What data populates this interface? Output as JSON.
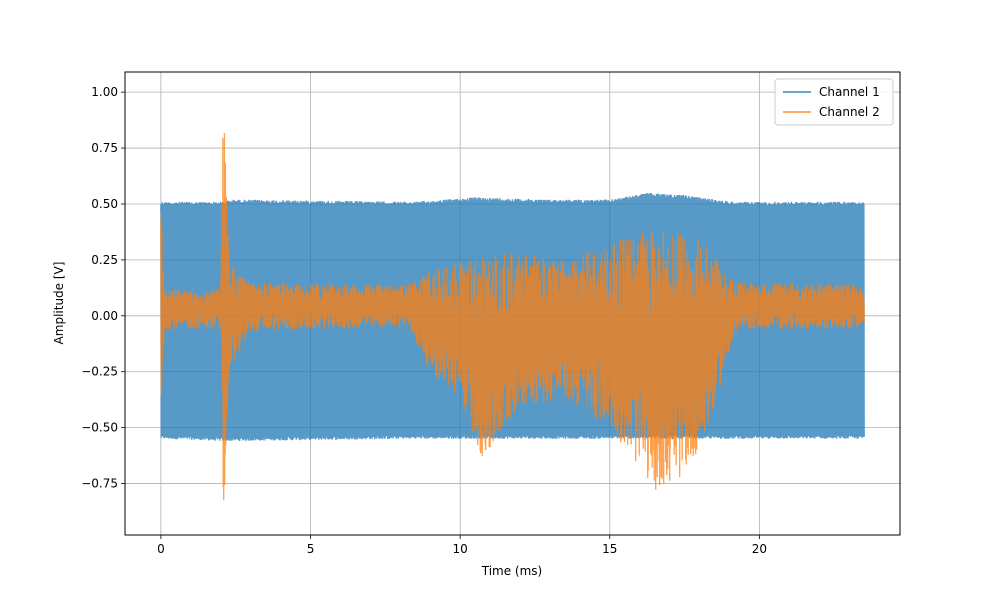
{
  "chart_data": {
    "type": "line",
    "title": "",
    "xlabel": "Time (ms)",
    "ylabel": "Amplitude [V]",
    "xlim": [
      -1.2,
      24.7
    ],
    "ylim": [
      -0.98,
      1.09
    ],
    "xticks": [
      0,
      5,
      10,
      15,
      20
    ],
    "xtick_labels": [
      "0",
      "5",
      "10",
      "15",
      "20"
    ],
    "yticks": [
      -0.75,
      -0.5,
      -0.25,
      0.0,
      0.25,
      0.5,
      0.75,
      1.0
    ],
    "ytick_labels": [
      "−0.75",
      "−0.50",
      "−0.25",
      "0.00",
      "0.25",
      "0.50",
      "0.75",
      "1.00"
    ],
    "grid": true,
    "legend_position": "upper right",
    "series": [
      {
        "name": "Channel 1",
        "color": "#1f77b4",
        "opacity": 0.75,
        "envelope_points": [
          {
            "x": 0.0,
            "min": -0.55,
            "max": 0.51
          },
          {
            "x": 2.0,
            "min": -0.56,
            "max": 0.51
          },
          {
            "x": 2.4,
            "min": -0.56,
            "max": 0.52
          },
          {
            "x": 8.5,
            "min": -0.55,
            "max": 0.51
          },
          {
            "x": 9.5,
            "min": -0.55,
            "max": 0.52
          },
          {
            "x": 10.5,
            "min": -0.55,
            "max": 0.53
          },
          {
            "x": 13.0,
            "min": -0.55,
            "max": 0.52
          },
          {
            "x": 15.0,
            "min": -0.55,
            "max": 0.52
          },
          {
            "x": 16.3,
            "min": -0.55,
            "max": 0.55
          },
          {
            "x": 17.5,
            "min": -0.55,
            "max": 0.54
          },
          {
            "x": 18.5,
            "min": -0.55,
            "max": 0.52
          },
          {
            "x": 19.2,
            "min": -0.55,
            "max": 0.51
          },
          {
            "x": 23.5,
            "min": -0.55,
            "max": 0.51
          }
        ]
      },
      {
        "name": "Channel 2",
        "color": "#ff7f0e",
        "opacity": 0.75,
        "envelope_points": [
          {
            "x": 0.0,
            "min": -0.6,
            "max": 0.63
          },
          {
            "x": 0.1,
            "min": -0.06,
            "max": 0.12
          },
          {
            "x": 2.0,
            "min": -0.06,
            "max": 0.12
          },
          {
            "x": 2.08,
            "min": -0.89,
            "max": 1.0
          },
          {
            "x": 2.3,
            "min": -0.25,
            "max": 0.25
          },
          {
            "x": 3.0,
            "min": -0.07,
            "max": 0.15
          },
          {
            "x": 8.2,
            "min": -0.05,
            "max": 0.14
          },
          {
            "x": 9.0,
            "min": -0.25,
            "max": 0.2
          },
          {
            "x": 10.0,
            "min": -0.38,
            "max": 0.24
          },
          {
            "x": 10.8,
            "min": -0.67,
            "max": 0.27
          },
          {
            "x": 12.0,
            "min": -0.4,
            "max": 0.28
          },
          {
            "x": 13.5,
            "min": -0.38,
            "max": 0.25
          },
          {
            "x": 15.0,
            "min": -0.5,
            "max": 0.33
          },
          {
            "x": 16.5,
            "min": -0.78,
            "max": 0.4
          },
          {
            "x": 17.2,
            "min": -0.76,
            "max": 0.38
          },
          {
            "x": 18.2,
            "min": -0.55,
            "max": 0.34
          },
          {
            "x": 18.9,
            "min": -0.2,
            "max": 0.18
          },
          {
            "x": 19.3,
            "min": -0.06,
            "max": 0.15
          },
          {
            "x": 23.5,
            "min": -0.06,
            "max": 0.14
          }
        ]
      }
    ]
  }
}
